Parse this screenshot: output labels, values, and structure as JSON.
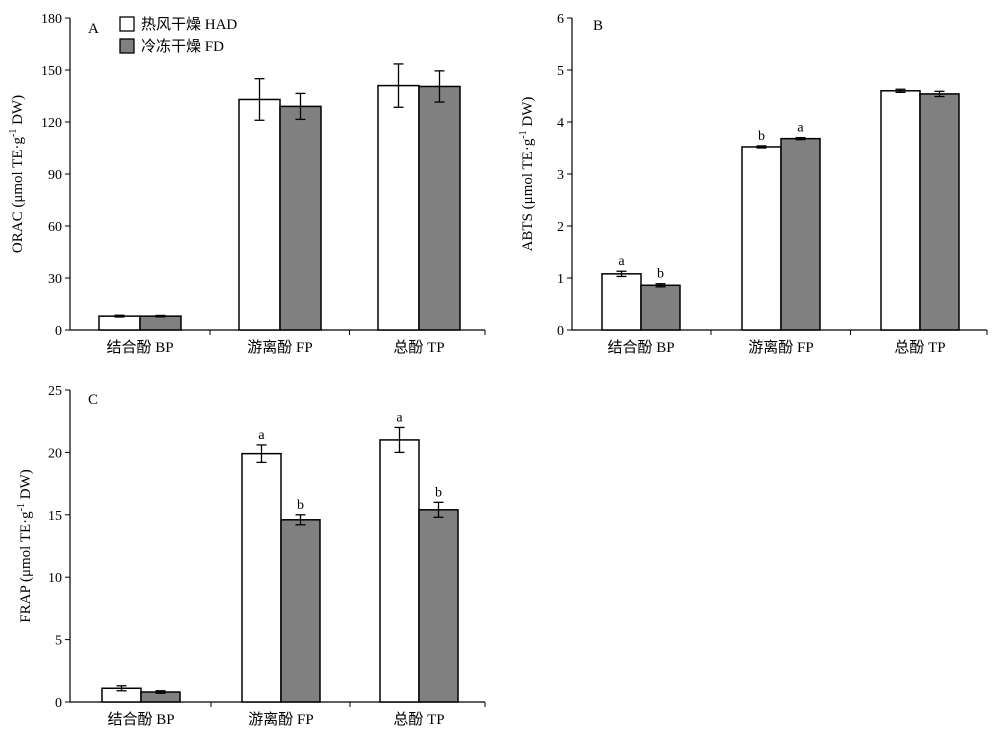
{
  "legend": {
    "items": [
      {
        "label": "热风干燥 HAD",
        "color": "#ffffff"
      },
      {
        "label": "冷冻干燥 FD",
        "color": "#808080"
      }
    ]
  },
  "chart_data": [
    {
      "panel": "A",
      "type": "bar",
      "ylabel_main": "ORAC (μmol TE·g",
      "ylabel_sup": "-1",
      "ylabel_end": " DW)",
      "categories": [
        "结合酚 BP",
        "游离酚 FP",
        "总酚 TP"
      ],
      "ylim": [
        0,
        180
      ],
      "yticks": [
        0,
        30,
        60,
        90,
        120,
        150,
        180
      ],
      "series": [
        {
          "name": "热风干燥 HAD",
          "color": "#ffffff",
          "values": [
            8,
            133,
            141
          ],
          "errors": [
            0.5,
            12,
            12.5
          ],
          "letters": [
            "",
            "",
            ""
          ]
        },
        {
          "name": "冷冻干燥 FD",
          "color": "#808080",
          "values": [
            8,
            129,
            140.5
          ],
          "errors": [
            0.4,
            7.5,
            9
          ],
          "letters": [
            "",
            "",
            ""
          ]
        }
      ]
    },
    {
      "panel": "B",
      "type": "bar",
      "ylabel_main": "ABTS (μmol TE·g",
      "ylabel_sup": "-1",
      "ylabel_end": " DW)",
      "categories": [
        "结合酚 BP",
        "游离酚 FP",
        "总酚 TP"
      ],
      "ylim": [
        0,
        6
      ],
      "yticks": [
        0,
        1,
        2,
        3,
        4,
        5,
        6
      ],
      "series": [
        {
          "name": "热风干燥 HAD",
          "color": "#ffffff",
          "values": [
            1.08,
            3.52,
            4.6
          ],
          "errors": [
            0.05,
            0.02,
            0.03
          ],
          "letters": [
            "a",
            "b",
            ""
          ]
        },
        {
          "name": "冷冻干燥 FD",
          "color": "#808080",
          "values": [
            0.86,
            3.68,
            4.54
          ],
          "errors": [
            0.03,
            0.02,
            0.05
          ],
          "letters": [
            "b",
            "a",
            ""
          ]
        }
      ]
    },
    {
      "panel": "C",
      "type": "bar",
      "ylabel_main": "FRAP (μmol TE·g",
      "ylabel_sup": "-1",
      "ylabel_end": " DW)",
      "categories": [
        "结合酚 BP",
        "游离酚 FP",
        "总酚 TP"
      ],
      "ylim": [
        0,
        25
      ],
      "yticks": [
        0,
        5,
        10,
        15,
        20,
        25
      ],
      "series": [
        {
          "name": "热风干燥 HAD",
          "color": "#ffffff",
          "values": [
            1.1,
            19.9,
            21
          ],
          "errors": [
            0.2,
            0.7,
            1.0
          ],
          "letters": [
            "",
            "a",
            "a"
          ]
        },
        {
          "name": "冷冻干燥 FD",
          "color": "#808080",
          "values": [
            0.8,
            14.6,
            15.4
          ],
          "errors": [
            0.1,
            0.4,
            0.6
          ],
          "letters": [
            "",
            "b",
            "b"
          ]
        }
      ]
    }
  ]
}
